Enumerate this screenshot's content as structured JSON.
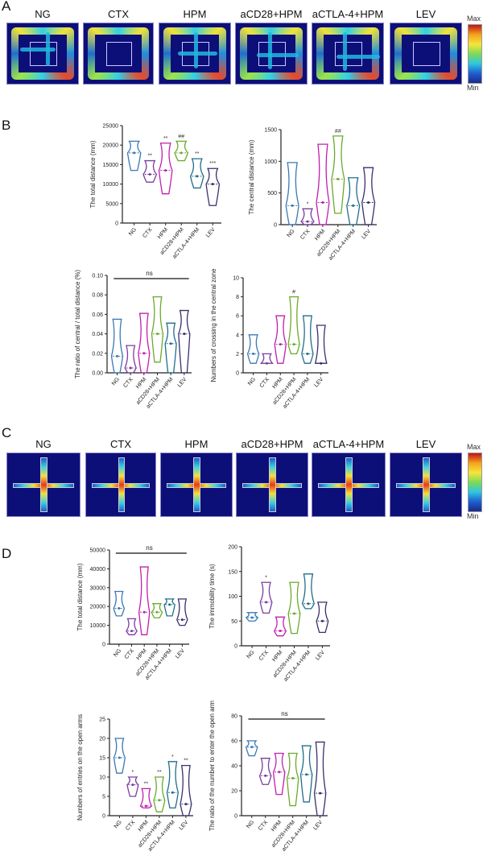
{
  "panels": {
    "A": {
      "label": "A",
      "titles": [
        "NG",
        "CTX",
        "HPM",
        "aCD28+HPM",
        "aCTLA-4+HPM",
        "LEV"
      ],
      "colorbar": {
        "max": "Max",
        "min": "Min"
      }
    },
    "B": {
      "label": "B"
    },
    "C": {
      "label": "C",
      "titles": [
        "NG",
        "CTX",
        "HPM",
        "aCD28+HPM",
        "aCTLA-4+HPM",
        "LEV"
      ],
      "colorbar": {
        "max": "Max",
        "min": "Min"
      }
    },
    "D": {
      "label": "D"
    }
  },
  "group_colors": {
    "NG": "#3a78b5",
    "CTX": "#7a3ea0",
    "HPM": "#c21eb0",
    "aCD28+HPM": "#6aaa2a",
    "aCTLA-4+HPM": "#1f6e8c",
    "LEV": "#3a2f6e"
  },
  "chart_data": [
    {
      "id": "B1",
      "type": "violin",
      "ylabel": "The total distance (mm)",
      "ylim": [
        0,
        25000
      ],
      "yticks": [
        "0",
        "5000",
        "10000",
        "15000",
        "20000",
        "25000"
      ],
      "categories": [
        "NG",
        "CTX",
        "HPM",
        "aCD28+HPM",
        "aCTLA-4+HPM",
        "LEV"
      ],
      "min": [
        13500,
        10500,
        7500,
        16000,
        9000,
        4500
      ],
      "median": [
        18000,
        12500,
        13500,
        18000,
        12000,
        10000
      ],
      "max": [
        21000,
        16000,
        20500,
        21000,
        16500,
        14000
      ],
      "significance": [
        "",
        "**",
        "**",
        "##",
        "**",
        "***"
      ],
      "bracket": ""
    },
    {
      "id": "B2",
      "type": "violin",
      "ylabel": "The central distance (mm)",
      "ylim": [
        0,
        1500
      ],
      "yticks": [
        "0",
        "500",
        "1000",
        "1500"
      ],
      "categories": [
        "NG",
        "CTX",
        "HPM",
        "aCD28+HPM",
        "aCTLA-4+HPM",
        "LEV"
      ],
      "min": [
        0,
        0,
        0,
        180,
        0,
        0
      ],
      "median": [
        300,
        50,
        350,
        720,
        300,
        350
      ],
      "max": [
        980,
        250,
        1270,
        1400,
        740,
        900
      ],
      "significance": [
        "",
        "*",
        "",
        "##",
        "",
        ""
      ],
      "bracket": ""
    },
    {
      "id": "B3",
      "type": "violin",
      "ylabel": "The ratio of central / total distance (%)",
      "ylim": [
        0,
        0.1
      ],
      "yticks": [
        "0.00",
        "0.02",
        "0.04",
        "0.06",
        "0.08",
        "0.10"
      ],
      "categories": [
        "NG",
        "CTX",
        "HPM",
        "aCD28+HPM",
        "aCTLA-4+HPM",
        "LEV"
      ],
      "min": [
        0,
        0,
        0,
        0.011,
        0,
        0
      ],
      "median": [
        0.017,
        0.005,
        0.02,
        0.04,
        0.03,
        0.04
      ],
      "max": [
        0.055,
        0.028,
        0.061,
        0.078,
        0.051,
        0.064
      ],
      "significance": [
        "",
        "",
        "",
        "",
        "",
        ""
      ],
      "bracket": "ns"
    },
    {
      "id": "B4",
      "type": "violin",
      "ylabel": "Numbers of crossing in the central zone",
      "ylim": [
        0,
        10
      ],
      "yticks": [
        "0",
        "2",
        "4",
        "6",
        "8",
        "10"
      ],
      "categories": [
        "NG",
        "CTX",
        "HPM",
        "aCD28+HPM",
        "aCTLA-4+HPM",
        "LEV"
      ],
      "min": [
        1,
        1,
        1,
        2,
        1,
        1
      ],
      "median": [
        2,
        1,
        3,
        3,
        2,
        1
      ],
      "max": [
        4,
        2,
        6,
        8,
        6,
        5
      ],
      "significance": [
        "",
        "",
        "",
        "#",
        "",
        ""
      ],
      "bracket": ""
    },
    {
      "id": "D1",
      "type": "violin",
      "ylabel": "The total distance (mm)",
      "ylim": [
        0,
        50000
      ],
      "yticks": [
        "0",
        "10000",
        "20000",
        "30000",
        "40000",
        "50000"
      ],
      "categories": [
        "NG",
        "CTX",
        "HPM",
        "aCD28+HPM",
        "aCTLA-4+HPM",
        "LEV"
      ],
      "min": [
        15000,
        5000,
        5000,
        14000,
        15000,
        10000
      ],
      "median": [
        19000,
        7000,
        17000,
        17000,
        21000,
        13000
      ],
      "max": [
        28000,
        13500,
        41000,
        21500,
        24000,
        24000
      ],
      "significance": [
        "",
        "",
        "",
        "",
        "",
        ""
      ],
      "bracket": "ns"
    },
    {
      "id": "D2",
      "type": "violin",
      "ylabel": "The immobility time (s)",
      "ylim": [
        0,
        200
      ],
      "yticks": [
        "0",
        "50",
        "100",
        "150",
        "200"
      ],
      "categories": [
        "NG",
        "CTX",
        "HPM",
        "aCD28+HPM",
        "aCTLA-4+HPM",
        "LEV"
      ],
      "min": [
        50,
        66,
        20,
        25,
        75,
        27
      ],
      "median": [
        57,
        88,
        30,
        65,
        85,
        50
      ],
      "max": [
        67,
        128,
        58,
        128,
        145,
        88
      ],
      "significance": [
        "",
        "*",
        "",
        "",
        "",
        ""
      ],
      "bracket": ""
    },
    {
      "id": "D3",
      "type": "violin",
      "ylabel": "Numbers of entries on the open arms",
      "ylim": [
        0,
        25
      ],
      "yticks": [
        "0",
        "5",
        "10",
        "15",
        "20",
        "25"
      ],
      "categories": [
        "NG",
        "CTX",
        "HPM",
        "aCD28+HPM",
        "aCTLA-4+HPM",
        "LEV"
      ],
      "min": [
        11,
        5,
        2,
        1,
        2,
        0
      ],
      "median": [
        15,
        8,
        2.5,
        4,
        6,
        3
      ],
      "max": [
        20,
        10,
        7,
        10,
        14,
        13
      ],
      "significance": [
        "",
        "*",
        "**",
        "**",
        "*",
        "**"
      ],
      "bracket": ""
    },
    {
      "id": "D4",
      "type": "violin",
      "ylabel": "The ratio of the number to enter the open arm",
      "ylim": [
        0,
        80
      ],
      "yticks": [
        "0",
        "20",
        "40",
        "60",
        "80"
      ],
      "categories": [
        "NG",
        "CTX",
        "HPM",
        "aCD28+HPM",
        "aCTLA-4+HPM",
        "LEV"
      ],
      "min": [
        48,
        25,
        17,
        8,
        11,
        0
      ],
      "median": [
        55,
        32,
        35,
        30,
        33,
        18
      ],
      "max": [
        60,
        46,
        50,
        50,
        56,
        59
      ],
      "significance": [
        "",
        "",
        "",
        "",
        "",
        ""
      ],
      "bracket": "ns"
    }
  ]
}
